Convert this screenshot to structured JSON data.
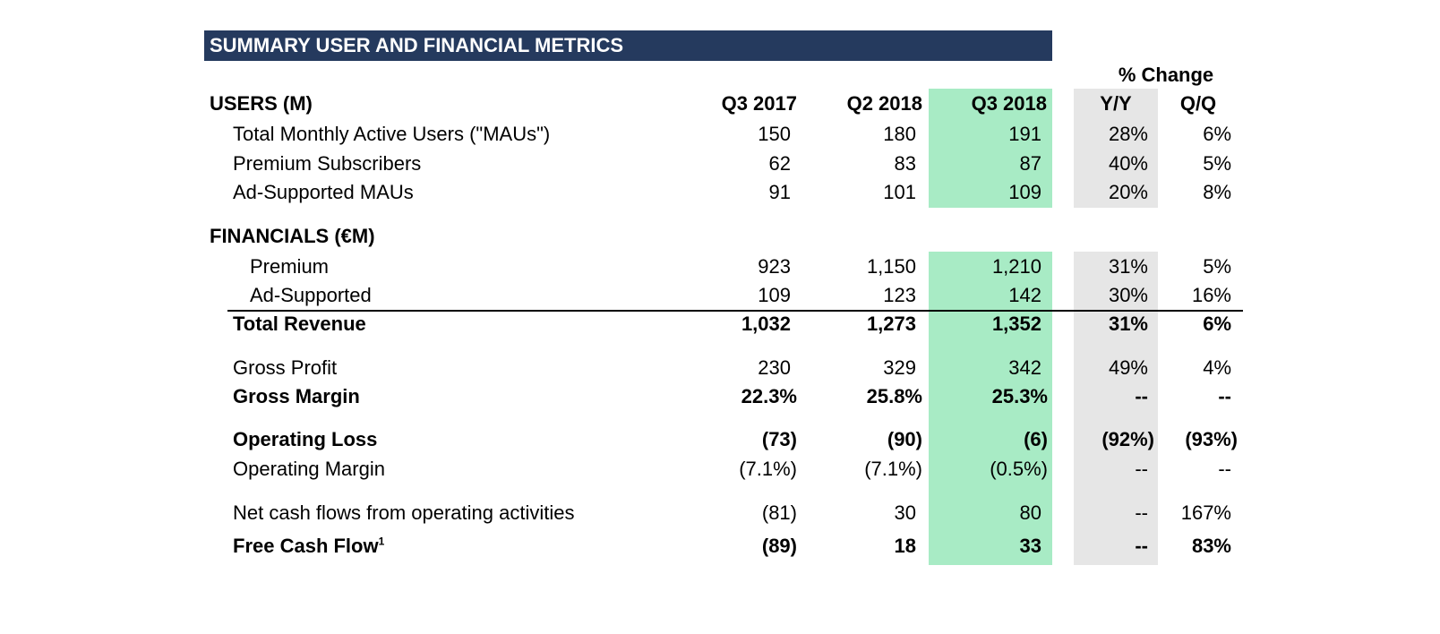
{
  "title": "SUMMARY USER AND FINANCIAL METRICS",
  "pct_change_header": "% Change",
  "users_section": {
    "label": "USERS (M)",
    "columns": [
      "Q3 2017",
      "Q2 2018",
      "Q3 2018",
      "Y/Y",
      "Q/Q"
    ]
  },
  "users_rows": [
    {
      "label": "Total Monthly Active Users (\"MAUs\")",
      "q3_2017": "150",
      "q2_2018": "180",
      "q3_2018": "191",
      "yy": "28%",
      "qq": "6%"
    },
    {
      "label": "Premium Subscribers",
      "q3_2017": "62",
      "q2_2018": "83",
      "q3_2018": "87",
      "yy": "40%",
      "qq": "5%"
    },
    {
      "label": "Ad-Supported MAUs",
      "q3_2017": "91",
      "q2_2018": "101",
      "q3_2018": "109",
      "yy": "20%",
      "qq": "8%"
    }
  ],
  "financials_section": {
    "label": "FINANCIALS (€M)"
  },
  "financial_rows": [
    {
      "label": "Premium",
      "q3_2017": "923",
      "q2_2018": "1,150",
      "q3_2018": "1,210",
      "yy": "31%",
      "qq": "5%"
    },
    {
      "label": "Ad-Supported",
      "q3_2017": "109",
      "q2_2018": "123",
      "q3_2018": "142",
      "yy": "30%",
      "qq": "16%"
    },
    {
      "label": "Total Revenue",
      "q3_2017": "1,032",
      "q2_2018": "1,273",
      "q3_2018": "1,352",
      "yy": "31%",
      "qq": "6%"
    },
    {
      "label": "Gross Profit",
      "q3_2017": "230",
      "q2_2018": "329",
      "q3_2018": "342",
      "yy": "49%",
      "qq": "4%"
    },
    {
      "label": "Gross Margin",
      "q3_2017": "22.3%",
      "q2_2018": "25.8%",
      "q3_2018": "25.3%",
      "yy": "--",
      "qq": "--"
    },
    {
      "label": "Operating Loss",
      "q3_2017": "(73)",
      "q2_2018": "(90)",
      "q3_2018": "(6)",
      "yy": "(92%)",
      "qq": "(93%)"
    },
    {
      "label": "Operating Margin",
      "q3_2017": "(7.1%)",
      "q2_2018": "(7.1%)",
      "q3_2018": "(0.5%)",
      "yy": "--",
      "qq": "--"
    },
    {
      "label": "Net cash flows from operating activities",
      "q3_2017": "(81)",
      "q2_2018": "30",
      "q3_2018": "80",
      "yy": "--",
      "qq": "167%"
    },
    {
      "label": "Free Cash Flow",
      "footnote": "1",
      "q3_2017": "(89)",
      "q2_2018": "18",
      "q3_2018": "33",
      "yy": "--",
      "qq": "83%"
    }
  ]
}
